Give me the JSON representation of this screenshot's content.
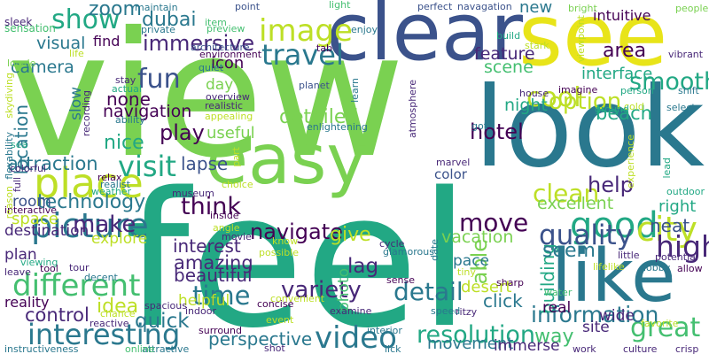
{
  "words": [
    {
      "text": "view",
      "color": "#7ad151"
    },
    {
      "text": "feel",
      "color": "#22a884"
    },
    {
      "text": "look",
      "color": "#2a788e"
    },
    {
      "text": "clear",
      "color": "#3b528b"
    },
    {
      "text": "see",
      "color": "#e8e419"
    },
    {
      "text": "like",
      "color": "#2a788e"
    },
    {
      "text": "easy",
      "color": "#7ad151"
    },
    {
      "text": "different",
      "color": "#44bf70"
    },
    {
      "text": "interesting",
      "color": "#2a788e"
    },
    {
      "text": "picture",
      "color": "#2a788e"
    },
    {
      "text": "place",
      "color": "#bddf26"
    },
    {
      "text": "good",
      "color": "#22a884"
    },
    {
      "text": "video",
      "color": "#2a788e"
    },
    {
      "text": "image",
      "color": "#bddf26"
    },
    {
      "text": "city",
      "color": "#bddf26"
    },
    {
      "text": "great",
      "color": "#44bf70"
    },
    {
      "text": "quality",
      "color": "#3b528b"
    },
    {
      "text": "travel",
      "color": "#2a788e"
    },
    {
      "text": "resolution",
      "color": "#22a884"
    },
    {
      "text": "show",
      "color": "#22a884"
    },
    {
      "text": "cool",
      "color": "#bddf26"
    },
    {
      "text": "visit",
      "color": "#22a884"
    },
    {
      "text": "move",
      "color": "#440154"
    },
    {
      "text": "high",
      "color": "#482878"
    },
    {
      "text": "information",
      "color": "#2a788e"
    },
    {
      "text": "fun",
      "color": "#3b528b"
    },
    {
      "text": "detail",
      "color": "#2a788e"
    },
    {
      "text": "smooth",
      "color": "#22a884"
    },
    {
      "text": "immersive",
      "color": "#482878"
    },
    {
      "text": "option",
      "color": "#bddf26"
    },
    {
      "text": "time",
      "color": "#2a788e"
    },
    {
      "text": "clean",
      "color": "#bddf26"
    },
    {
      "text": "technology",
      "color": "#2a788e"
    },
    {
      "text": "navigate",
      "color": "#440154"
    },
    {
      "text": "think",
      "color": "#440154"
    },
    {
      "text": "variety",
      "color": "#482878"
    },
    {
      "text": "make",
      "color": "#482878"
    },
    {
      "text": "zoom",
      "color": "#2a788e"
    },
    {
      "text": "dubai",
      "color": "#2a788e"
    },
    {
      "text": "hotel",
      "color": "#440154"
    },
    {
      "text": "detailed",
      "color": "#7ad151"
    },
    {
      "text": "attraction",
      "color": "#2a788e"
    },
    {
      "text": "able",
      "color": "#7ad151"
    },
    {
      "text": "help",
      "color": "#482878"
    },
    {
      "text": "perspective",
      "color": "#2a788e"
    },
    {
      "text": "play",
      "color": "#440154"
    },
    {
      "text": "location",
      "color": "#2a788e"
    },
    {
      "text": "building",
      "color": "#22a884"
    },
    {
      "text": "quick",
      "color": "#2a788e"
    },
    {
      "text": "amazing",
      "color": "#482878"
    },
    {
      "text": "give",
      "color": "#bddf26"
    },
    {
      "text": "lag",
      "color": "#482878"
    },
    {
      "text": "way",
      "color": "#44bf70"
    },
    {
      "text": "beach",
      "color": "#22a884"
    },
    {
      "text": "control",
      "color": "#482878"
    },
    {
      "text": "interface",
      "color": "#22a884"
    },
    {
      "text": "area",
      "color": "#440154"
    },
    {
      "text": "seem",
      "color": "#2a788e"
    },
    {
      "text": "interest",
      "color": "#482878"
    },
    {
      "text": "idea",
      "color": "#bddf26"
    },
    {
      "text": "lapse",
      "color": "#3b528b"
    },
    {
      "text": "beautiful",
      "color": "#482878"
    },
    {
      "text": "nice",
      "color": "#22a884"
    },
    {
      "text": "none",
      "color": "#440154"
    },
    {
      "text": "night",
      "color": "#22a884"
    },
    {
      "text": "navigation",
      "color": "#440154"
    },
    {
      "text": "feature",
      "color": "#482878"
    },
    {
      "text": "scene",
      "color": "#44bf70"
    },
    {
      "text": "vacation",
      "color": "#7ad151"
    },
    {
      "text": "excellent",
      "color": "#7ad151"
    },
    {
      "text": "neat",
      "color": "#3b528b"
    },
    {
      "text": "click",
      "color": "#2a788e"
    },
    {
      "text": "movement",
      "color": "#2a788e"
    },
    {
      "text": "immerse",
      "color": "#482878"
    },
    {
      "text": "photo",
      "color": "#44bf70"
    },
    {
      "text": "desert",
      "color": "#bddf26"
    },
    {
      "text": "real",
      "color": "#440154"
    },
    {
      "text": "site",
      "color": "#482878"
    },
    {
      "text": "wide",
      "color": "#482878"
    },
    {
      "text": "helpful",
      "color": "#bddf26"
    },
    {
      "text": "pace",
      "color": "#2a788e"
    },
    {
      "text": "useful",
      "color": "#7ad151"
    },
    {
      "text": "day",
      "color": "#7ad151"
    },
    {
      "text": "room",
      "color": "#3b528b"
    },
    {
      "text": "explore",
      "color": "#bddf26"
    },
    {
      "text": "destination",
      "color": "#482878"
    },
    {
      "text": "space",
      "color": "#bddf26"
    },
    {
      "text": "plan",
      "color": "#482878"
    },
    {
      "text": "reality",
      "color": "#440154"
    },
    {
      "text": "camera",
      "color": "#2a788e"
    },
    {
      "text": "slow",
      "color": "#2a788e"
    },
    {
      "text": "visual",
      "color": "#2a788e"
    },
    {
      "text": "find",
      "color": "#440154"
    },
    {
      "text": "icon",
      "color": "#440154"
    },
    {
      "text": "new",
      "color": "#2a788e"
    },
    {
      "text": "intuitive",
      "color": "#440154"
    },
    {
      "text": "right",
      "color": "#22a884"
    },
    {
      "text": "color",
      "color": "#3b528b"
    },
    {
      "text": "sleek",
      "color": "#482878"
    },
    {
      "text": "sensation",
      "color": "#44bf70"
    },
    {
      "text": "maintain",
      "color": "#2a788e"
    },
    {
      "text": "private",
      "color": "#2a788e"
    },
    {
      "text": "item",
      "color": "#44bf70"
    },
    {
      "text": "preview",
      "color": "#44bf70"
    },
    {
      "text": "point",
      "color": "#3b528b"
    },
    {
      "text": "light",
      "color": "#44bf70"
    },
    {
      "text": "enjoy",
      "color": "#2a788e"
    },
    {
      "text": "perfect",
      "color": "#3b528b"
    },
    {
      "text": "navagation",
      "color": "#3b528b"
    },
    {
      "text": "build",
      "color": "#22a884"
    },
    {
      "text": "bright",
      "color": "#7ad151"
    },
    {
      "text": "stark",
      "color": "#bddf26"
    },
    {
      "text": "viewpoint",
      "color": "#bddf26"
    },
    {
      "text": "people",
      "color": "#7ad151"
    },
    {
      "text": "vibrant",
      "color": "#482878"
    },
    {
      "text": "locale",
      "color": "#7ad151"
    },
    {
      "text": "life",
      "color": "#bddf26"
    },
    {
      "text": "architecture",
      "color": "#3b528b"
    },
    {
      "text": "environment",
      "color": "#440154"
    },
    {
      "text": "tab",
      "color": "#440154"
    },
    {
      "text": "quiet",
      "color": "#2a788e"
    },
    {
      "text": "stay",
      "color": "#482878"
    },
    {
      "text": "actual",
      "color": "#22a884"
    },
    {
      "text": "ability",
      "color": "#2a788e"
    },
    {
      "text": "recording",
      "color": "#482878"
    },
    {
      "text": "skydiving",
      "color": "#bddf26"
    },
    {
      "text": "flexability",
      "color": "#2a788e"
    },
    {
      "text": "sea",
      "color": "#22a884"
    },
    {
      "text": "colorful",
      "color": "#482878"
    },
    {
      "text": "full",
      "color": "#482878"
    },
    {
      "text": "relax",
      "color": "#440154"
    },
    {
      "text": "realist",
      "color": "#2a788e"
    },
    {
      "text": "weather",
      "color": "#22a884"
    },
    {
      "text": "interactive",
      "color": "#440154"
    },
    {
      "text": "reason",
      "color": "#bddf26"
    },
    {
      "text": "leave",
      "color": "#482878"
    },
    {
      "text": "viewing",
      "color": "#22a884"
    },
    {
      "text": "museum",
      "color": "#482878"
    },
    {
      "text": "choice",
      "color": "#bddf26"
    },
    {
      "text": "inside",
      "color": "#440154"
    },
    {
      "text": "angle",
      "color": "#bddf26"
    },
    {
      "text": "movie",
      "color": "#482878"
    },
    {
      "text": "tour",
      "color": "#482878"
    },
    {
      "text": "tool",
      "color": "#440154"
    },
    {
      "text": "decent",
      "color": "#2a788e"
    },
    {
      "text": "spacious",
      "color": "#482878"
    },
    {
      "text": "reactive",
      "color": "#482878"
    },
    {
      "text": "chance",
      "color": "#bddf26"
    },
    {
      "text": "surround",
      "color": "#440154"
    },
    {
      "text": "indoor",
      "color": "#482878"
    },
    {
      "text": "attractive",
      "color": "#2a788e"
    },
    {
      "text": "online",
      "color": "#44bf70"
    },
    {
      "text": "instructiveness",
      "color": "#2a788e"
    },
    {
      "text": "shot",
      "color": "#482878"
    },
    {
      "text": "interior",
      "color": "#2a788e"
    },
    {
      "text": "examine",
      "color": "#482878"
    },
    {
      "text": "convenient",
      "color": "#bddf26"
    },
    {
      "text": "ritzy",
      "color": "#482878"
    },
    {
      "text": "lick",
      "color": "#2a788e"
    },
    {
      "text": "work",
      "color": "#482878"
    },
    {
      "text": "culture",
      "color": "#482878"
    },
    {
      "text": "crisp",
      "color": "#482878"
    },
    {
      "text": "favorite",
      "color": "#bddf26"
    },
    {
      "text": "concise",
      "color": "#440154"
    },
    {
      "text": "event",
      "color": "#bddf26"
    },
    {
      "text": "possible",
      "color": "#bddf26"
    },
    {
      "text": "know",
      "color": "#bddf26"
    },
    {
      "text": "cycle",
      "color": "#482878"
    },
    {
      "text": "glamorous",
      "color": "#2a788e"
    },
    {
      "text": "sense",
      "color": "#440154"
    },
    {
      "text": "tiny",
      "color": "#bddf26"
    },
    {
      "text": "sharp",
      "color": "#440154"
    },
    {
      "text": "water",
      "color": "#44bf70"
    },
    {
      "text": "little",
      "color": "#482878"
    },
    {
      "text": "lifelike",
      "color": "#bddf26"
    },
    {
      "text": "lobby",
      "color": "#2a788e"
    },
    {
      "text": "allow",
      "color": "#440154"
    },
    {
      "text": "potential",
      "color": "#482878"
    },
    {
      "text": "outdoor",
      "color": "#22a884"
    },
    {
      "text": "lead",
      "color": "#22a884"
    },
    {
      "text": "experience",
      "color": "#bddf26"
    },
    {
      "text": "date",
      "color": "#2a788e"
    },
    {
      "text": "speed",
      "color": "#2a788e"
    },
    {
      "text": "marvel",
      "color": "#482878"
    },
    {
      "text": "got",
      "color": "#2a788e"
    },
    {
      "text": "atmosphere",
      "color": "#482878"
    },
    {
      "text": "enlightening",
      "color": "#2a788e"
    },
    {
      "text": "planet",
      "color": "#3b528b"
    },
    {
      "text": "learn",
      "color": "#2a788e"
    },
    {
      "text": "overview",
      "color": "#482878"
    },
    {
      "text": "realistic",
      "color": "#482878"
    },
    {
      "text": "appealing",
      "color": "#bddf26"
    },
    {
      "text": "part",
      "color": "#bddf26"
    },
    {
      "text": "house",
      "color": "#482878"
    },
    {
      "text": "imagine",
      "color": "#440154"
    },
    {
      "text": "person",
      "color": "#22a884"
    },
    {
      "text": "shift",
      "color": "#2a788e"
    },
    {
      "text": "select",
      "color": "#2a788e"
    },
    {
      "text": "cold",
      "color": "#bddf26"
    },
    {
      "text": "ground",
      "color": "#22a884"
    }
  ]
}
